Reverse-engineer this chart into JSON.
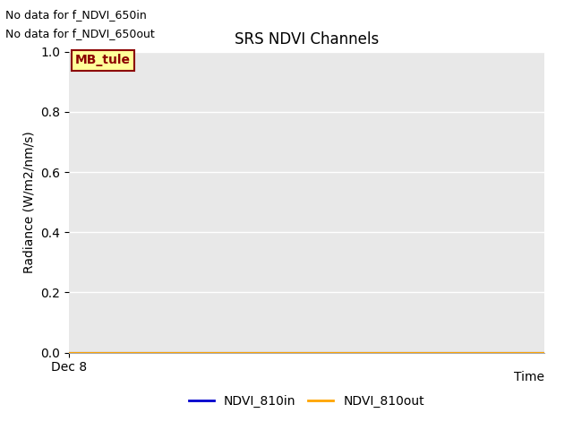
{
  "title": "SRS NDVI Channels",
  "ylabel": "Radiance (W/m2/nm/s)",
  "xlabel": "Time",
  "ylim": [
    0.0,
    1.0
  ],
  "yticks": [
    0.0,
    0.2,
    0.4,
    0.6,
    0.8,
    1.0
  ],
  "xticklabel": "Dec 8",
  "annotation_lines": [
    "No data for f_NDVI_650in",
    "No data for f_NDVI_650out"
  ],
  "legend_entries": [
    {
      "label": "NDVI_810in",
      "color": "#0000CD"
    },
    {
      "label": "NDVI_810out",
      "color": "#FFA500"
    }
  ],
  "tooltip_text": "MB_tule",
  "tooltip_color": "#8B0000",
  "tooltip_bg": "#FFFF99",
  "tooltip_edge": "#8B0000",
  "figure_bg": "#FFFFFF",
  "axes_bg": "#E8E8E8",
  "grid_color": "#FFFFFF",
  "title_fontsize": 12,
  "label_fontsize": 10,
  "tick_fontsize": 10,
  "annotation_fontsize": 9,
  "legend_fontsize": 10
}
